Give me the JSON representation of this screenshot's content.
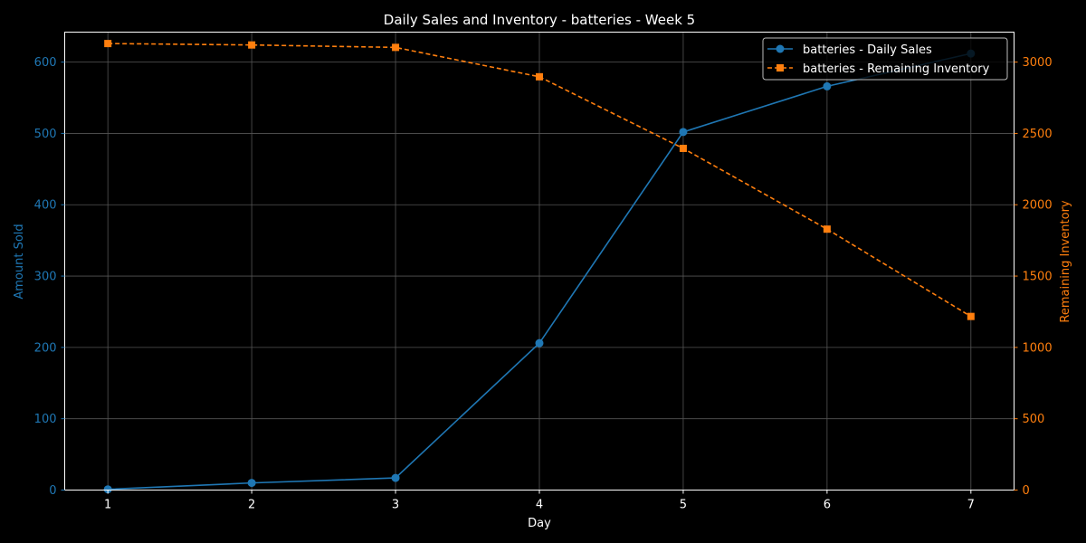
{
  "chart_data": {
    "type": "line",
    "title": "Daily Sales and Inventory - batteries - Week 5",
    "xlabel": "Day",
    "ylabel_left": "Amount Sold",
    "ylabel_right": "Remaining Inventory",
    "x": [
      1,
      2,
      3,
      4,
      5,
      6,
      7
    ],
    "xlim": [
      0.7,
      7.3
    ],
    "ylim_left": [
      0,
      642
    ],
    "ylim_right": [
      0,
      3210
    ],
    "yticks_left": [
      0,
      100,
      200,
      300,
      400,
      500,
      600
    ],
    "yticks_right": [
      0,
      500,
      1000,
      1500,
      2000,
      2500,
      3000
    ],
    "grid": true,
    "legend_position": "top-right",
    "series": [
      {
        "name": "batteries - Daily Sales",
        "axis": "left",
        "color": "#1f77b4",
        "marker": "circle",
        "linestyle": "solid",
        "values": [
          1,
          10,
          17,
          206,
          502,
          566,
          612
        ]
      },
      {
        "name": "batteries - Remaining Inventory",
        "axis": "right",
        "color": "#ff7f0e",
        "marker": "square",
        "linestyle": "dashed",
        "values": [
          3130,
          3120,
          3103,
          2897,
          2395,
          1829,
          1217
        ]
      }
    ]
  },
  "colors": {
    "background": "#000000",
    "foreground": "#ffffff",
    "grid": "#555555"
  }
}
